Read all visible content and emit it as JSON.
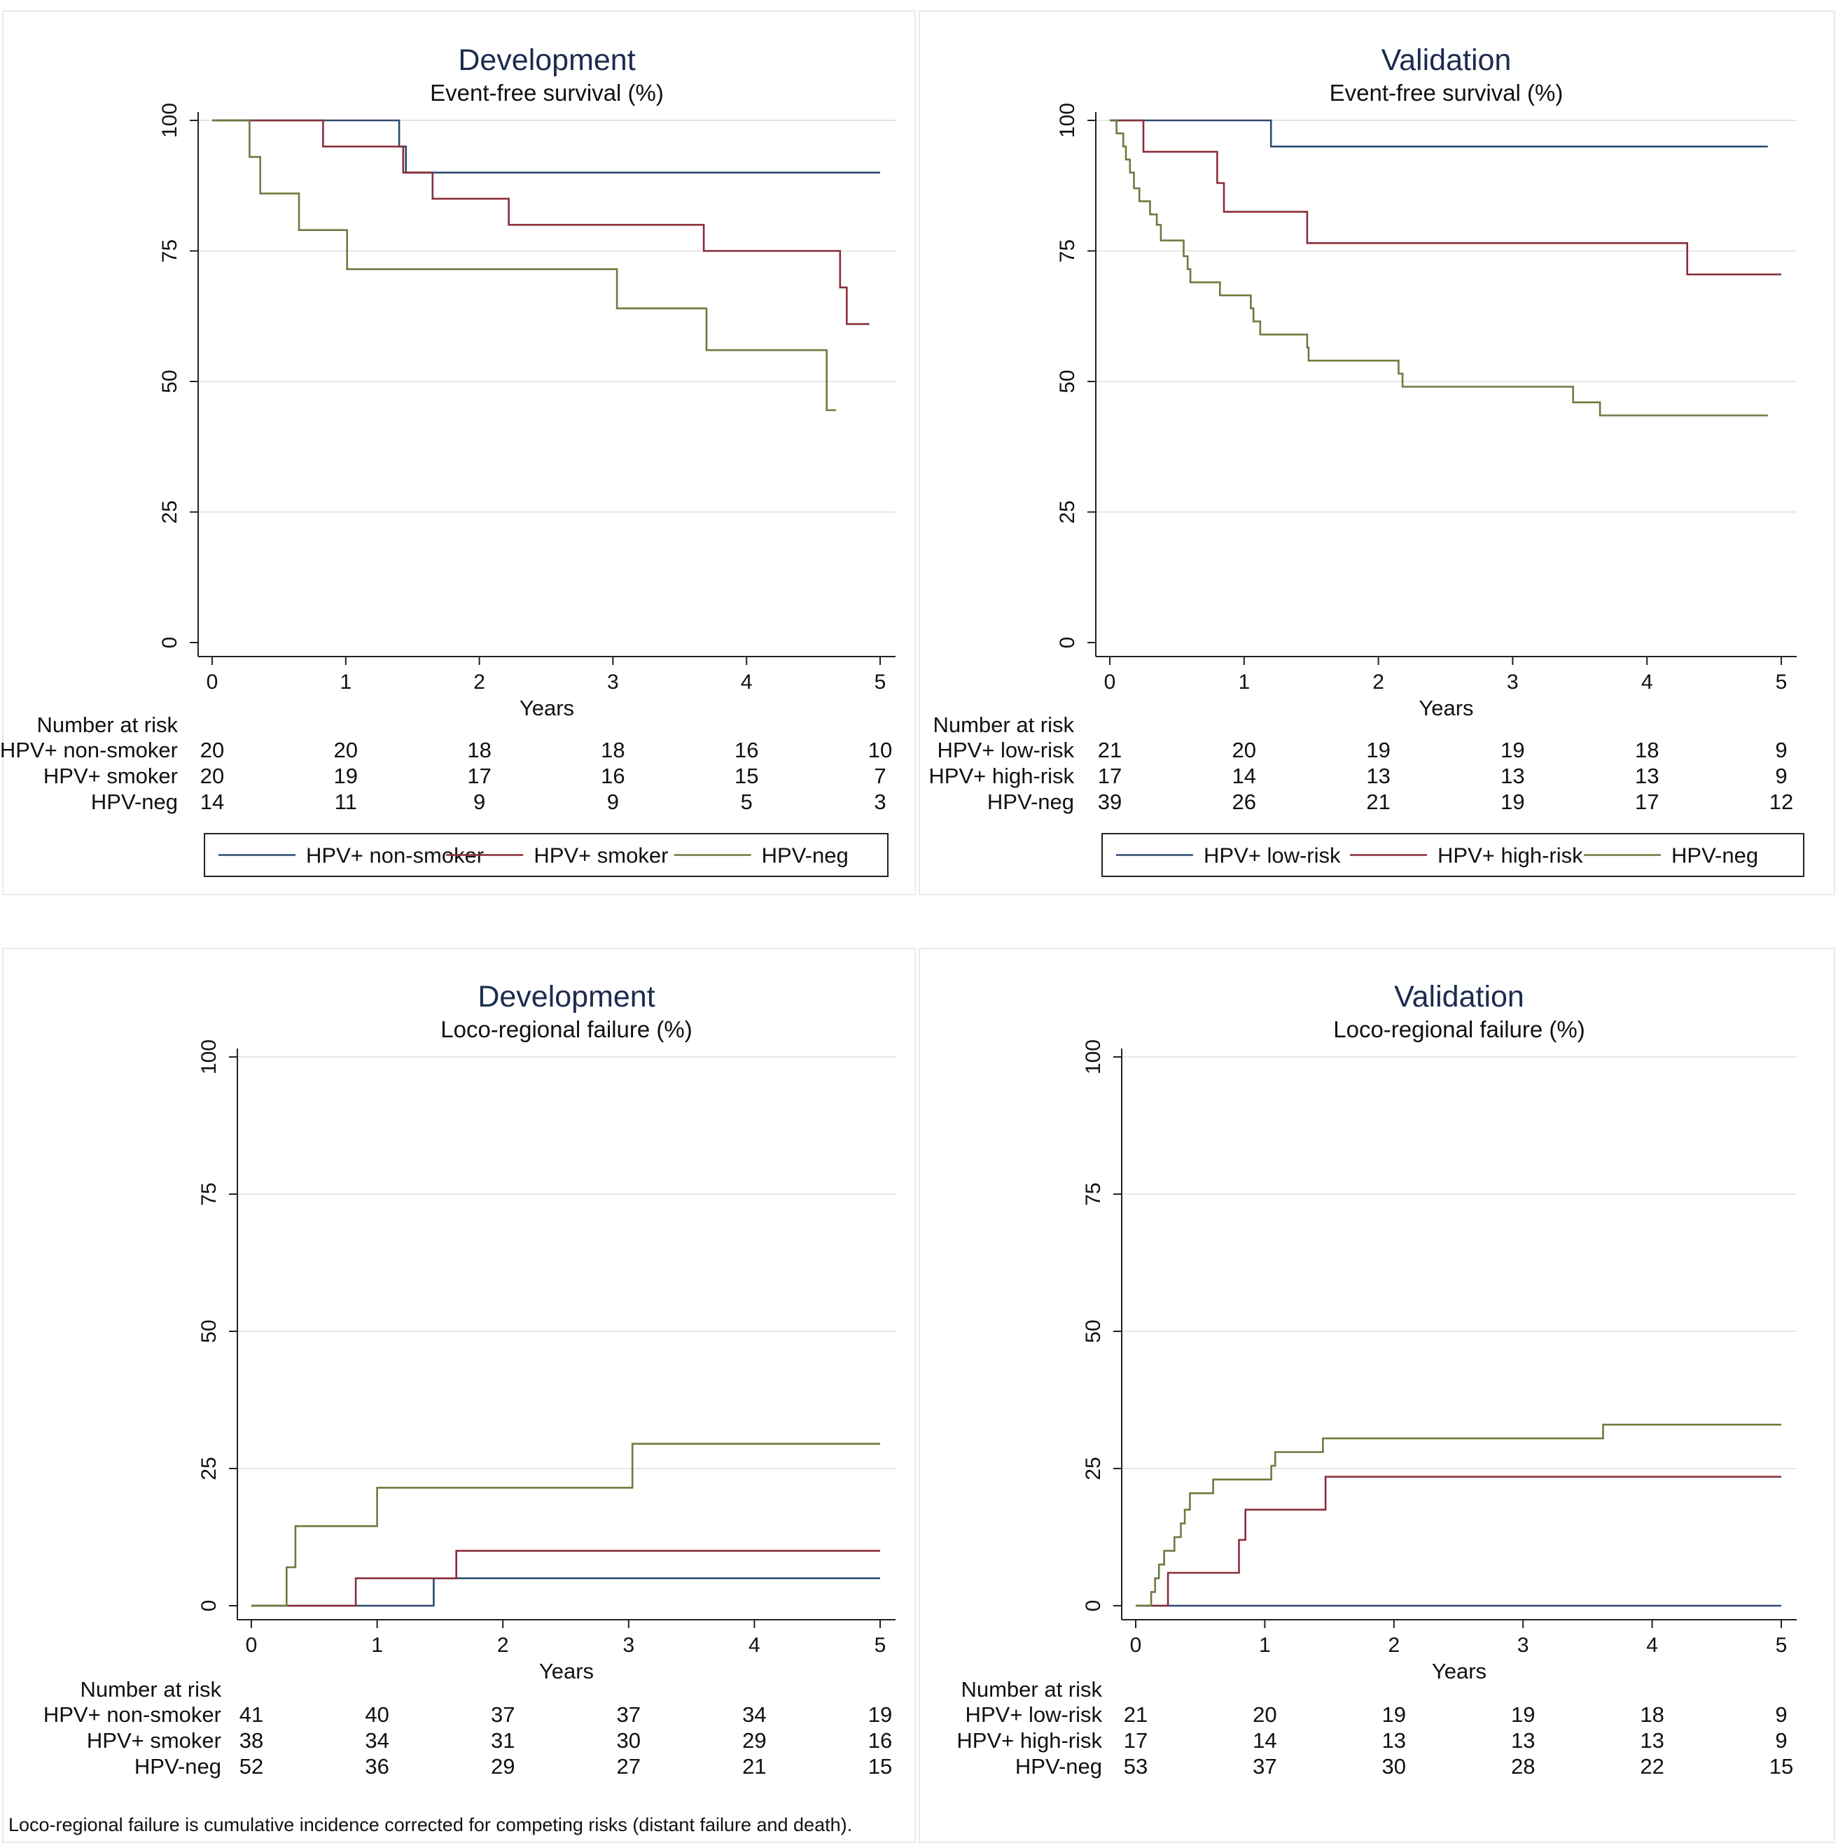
{
  "footnote": "Loco-regional failure is cumulative incidence corrected for competing risks (distant failure and death).",
  "colors": {
    "blue": "#2e4a72",
    "red": "#8a2e3a",
    "green": "#6b7c3e",
    "title": "#1c2b4f",
    "frame": "#eaeaea",
    "grid": "#e6e6e6"
  },
  "chart_data": [
    {
      "type": "line",
      "title": "Development",
      "subtitle": "Event-free survival (%)",
      "xlabel": "Years",
      "ylabel": "",
      "xlim": [
        0,
        5
      ],
      "ylim": [
        0,
        100
      ],
      "xticks": [
        "0",
        "1",
        "2",
        "3",
        "4",
        "5"
      ],
      "yticks": [
        "0",
        "25",
        "50",
        "75",
        "100"
      ],
      "grid": true,
      "legend_position": "bottom",
      "risk_header": "Number at risk",
      "series": [
        {
          "name": "HPV+ non-smoker",
          "color": "blue",
          "x": [
            0,
            1.4,
            1.45,
            5
          ],
          "y": [
            100,
            95,
            90,
            90
          ],
          "at_risk": [
            "20",
            "20",
            "18",
            "18",
            "16",
            "10"
          ]
        },
        {
          "name": "HPV+ smoker",
          "color": "red",
          "x": [
            0,
            0.83,
            1.43,
            1.65,
            2.22,
            3.68,
            4.7,
            4.75,
            4.92
          ],
          "y": [
            100,
            95,
            90,
            85,
            80,
            75,
            68,
            61,
            61
          ],
          "at_risk": [
            "20",
            "19",
            "17",
            "16",
            "15",
            "7"
          ]
        },
        {
          "name": "HPV-neg",
          "color": "green",
          "x": [
            0,
            0.28,
            0.36,
            0.65,
            1.01,
            3.03,
            3.7,
            4.6,
            4.67
          ],
          "y": [
            100,
            93,
            86,
            79,
            71.5,
            64,
            56,
            44.5,
            44.5
          ],
          "at_risk": [
            "14",
            "11",
            "9",
            "9",
            "5",
            "3"
          ]
        }
      ]
    },
    {
      "type": "line",
      "title": "Validation",
      "subtitle": "Event-free survival (%)",
      "xlabel": "Years",
      "ylabel": "",
      "xlim": [
        0,
        5
      ],
      "ylim": [
        0,
        100
      ],
      "xticks": [
        "0",
        "1",
        "2",
        "3",
        "4",
        "5"
      ],
      "yticks": [
        "0",
        "25",
        "50",
        "75",
        "100"
      ],
      "grid": true,
      "legend_position": "bottom",
      "risk_header": "Number at risk",
      "series": [
        {
          "name": "HPV+ low-risk",
          "color": "blue",
          "x": [
            0,
            1.2,
            4.9
          ],
          "y": [
            100,
            95,
            95
          ],
          "at_risk": [
            "21",
            "20",
            "19",
            "19",
            "18",
            "9"
          ]
        },
        {
          "name": "HPV+ high-risk",
          "color": "red",
          "x": [
            0,
            0.25,
            0.8,
            0.85,
            1.47,
            4.3,
            5
          ],
          "y": [
            100,
            94,
            88,
            82.5,
            76.5,
            70.5,
            70.5
          ],
          "at_risk": [
            "17",
            "14",
            "13",
            "13",
            "13",
            "9"
          ]
        },
        {
          "name": "HPV-neg",
          "color": "green",
          "x": [
            0,
            0.05,
            0.1,
            0.12,
            0.15,
            0.18,
            0.22,
            0.3,
            0.35,
            0.38,
            0.42,
            0.55,
            0.58,
            0.6,
            0.62,
            0.82,
            1.05,
            1.07,
            1.1,
            1.12,
            1.47,
            1.48,
            2.15,
            2.18,
            3.45,
            3.65,
            4.9
          ],
          "y": [
            100,
            97.5,
            95,
            92.5,
            90,
            87,
            84.5,
            82,
            80,
            77,
            77,
            74,
            71.5,
            69,
            69,
            66.5,
            64,
            61.5,
            61.5,
            59,
            56.5,
            54,
            51.5,
            49,
            46,
            43.5,
            43.5
          ],
          "at_risk": [
            "39",
            "26",
            "21",
            "19",
            "17",
            "12"
          ]
        }
      ]
    },
    {
      "type": "line",
      "title": "Development",
      "subtitle": "Loco-regional failure (%)",
      "xlabel": "Years",
      "ylabel": "",
      "xlim": [
        0,
        5
      ],
      "ylim": [
        0,
        100
      ],
      "xticks": [
        "0",
        "1",
        "2",
        "3",
        "4",
        "5"
      ],
      "yticks": [
        "0",
        "25",
        "50",
        "75",
        "100"
      ],
      "grid": true,
      "legend_position": "none",
      "risk_header": "Number at risk",
      "series": [
        {
          "name": "HPV+ non-smoker",
          "color": "blue",
          "x": [
            0,
            1.45,
            5
          ],
          "y": [
            0,
            5,
            5
          ],
          "at_risk": [
            "41",
            "40",
            "37",
            "37",
            "34",
            "19"
          ]
        },
        {
          "name": "HPV+ smoker",
          "color": "red",
          "x": [
            0,
            0.83,
            1.63,
            5
          ],
          "y": [
            0,
            5,
            10,
            10
          ],
          "at_risk": [
            "38",
            "34",
            "31",
            "30",
            "29",
            "16"
          ]
        },
        {
          "name": "HPV-neg",
          "color": "green",
          "x": [
            0,
            0.28,
            0.35,
            1.0,
            3.03,
            5
          ],
          "y": [
            0,
            7,
            14.5,
            21.5,
            29.5,
            29.5
          ],
          "at_risk": [
            "52",
            "36",
            "29",
            "27",
            "21",
            "15"
          ]
        }
      ]
    },
    {
      "type": "line",
      "title": "Validation",
      "subtitle": "Loco-regional failure (%)",
      "xlabel": "Years",
      "ylabel": "",
      "xlim": [
        0,
        5
      ],
      "ylim": [
        0,
        100
      ],
      "xticks": [
        "0",
        "1",
        "2",
        "3",
        "4",
        "5"
      ],
      "yticks": [
        "0",
        "25",
        "50",
        "75",
        "100"
      ],
      "grid": true,
      "legend_position": "none",
      "risk_header": "Number at risk",
      "series": [
        {
          "name": "HPV+ low-risk",
          "color": "blue",
          "x": [
            0,
            5
          ],
          "y": [
            0,
            0
          ],
          "at_risk": [
            "21",
            "20",
            "19",
            "19",
            "18",
            "9"
          ]
        },
        {
          "name": "HPV+ high-risk",
          "color": "red",
          "x": [
            0,
            0.25,
            0.8,
            0.85,
            1.47,
            5
          ],
          "y": [
            0,
            6,
            12,
            17.5,
            23.5,
            23.5
          ],
          "at_risk": [
            "17",
            "14",
            "13",
            "13",
            "13",
            "9"
          ]
        },
        {
          "name": "HPV-neg",
          "color": "green",
          "x": [
            0,
            0.12,
            0.15,
            0.18,
            0.22,
            0.3,
            0.35,
            0.38,
            0.42,
            0.6,
            1.05,
            1.08,
            1.45,
            3.62,
            5
          ],
          "y": [
            0,
            2.5,
            5,
            7.5,
            10,
            12.5,
            15,
            17.5,
            20.5,
            23,
            25.5,
            28,
            30.5,
            33,
            33
          ],
          "at_risk": [
            "53",
            "37",
            "30",
            "28",
            "22",
            "15"
          ]
        }
      ]
    }
  ]
}
